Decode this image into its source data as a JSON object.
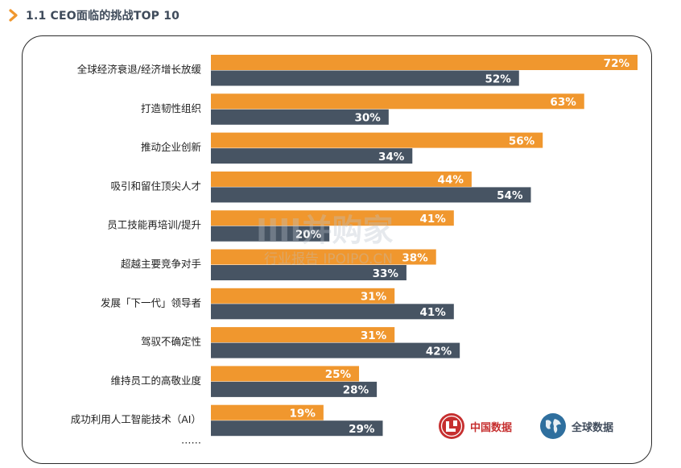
{
  "header": {
    "title": "1.1 CEO面临的挑战TOP 10"
  },
  "chart_data": {
    "type": "bar",
    "orientation": "horizontal",
    "categories": [
      "全球经济衰退/经济增长放缓",
      "打造韧性组织",
      "推动企业创新",
      "吸引和留住顶尖人才",
      "员工技能再培训/提升",
      "超越主要竞争对手",
      "发展「下一代」领导者",
      "驾驭不确定性",
      "维持员工的高敬业度",
      "成功利用人工智能技术（AI）"
    ],
    "series": [
      {
        "name": "中国数据",
        "color": "#f0972e",
        "values": [
          72,
          63,
          56,
          44,
          41,
          38,
          31,
          31,
          25,
          19
        ]
      },
      {
        "name": "全球数据",
        "color": "#475463",
        "values": [
          52,
          30,
          34,
          54,
          20,
          33,
          41,
          42,
          28,
          29
        ]
      }
    ],
    "value_suffix": "%",
    "xlim": [
      0,
      72
    ],
    "ellipsis": "……",
    "grid": false,
    "legend_position": "bottom-right"
  },
  "legend": {
    "china_label": "中国数据",
    "global_label": "全球数据",
    "china_icon": "china-flag-badge-icon",
    "global_icon": "globe-icon"
  },
  "watermark": {
    "main": "IIII并购家",
    "sub": "行业报告 IPOIPO.CN"
  }
}
